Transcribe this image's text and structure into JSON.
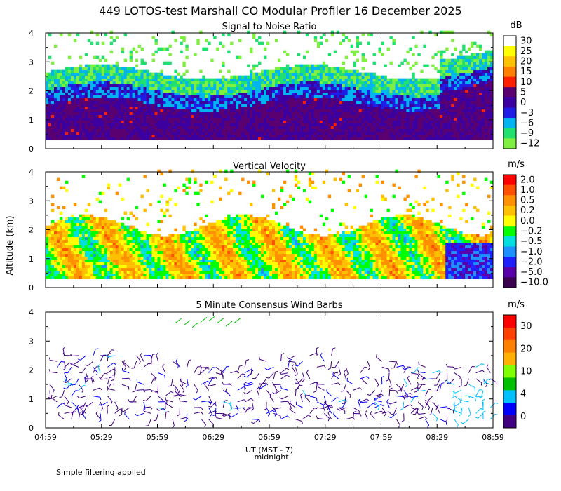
{
  "title": "449 LOTOS-test Marshall CO Modular Profiler 16 December 2025",
  "ylabel": "Altitude (km)",
  "xlabel": "UT (MST - 7)",
  "midnight_label": "midnight",
  "footer": "Simple filtering applied",
  "chart_data": [
    {
      "type": "heatmap",
      "title": "Signal to Noise Ratio",
      "ylabel": "Altitude (km)",
      "y_ticks": [
        "0",
        "1",
        "2",
        "3",
        "4"
      ],
      "ylim": [
        0,
        4
      ],
      "x_ticks": [],
      "colorbar_units": "dB",
      "colorbar_labels": [
        "30",
        "25",
        "20",
        "15",
        "10",
        "5",
        "0",
        "−3",
        "−6",
        "−9",
        "−12"
      ],
      "colors": [
        "#ffffff",
        "#ffff00",
        "#ffc000",
        "#ff8000",
        "#ff2000",
        "#5a0070",
        "#3c00a0",
        "#1e1ee6",
        "#00b4f0",
        "#20e070",
        "#80f040"
      ]
    },
    {
      "type": "heatmap",
      "title": "Vertical Velocity",
      "ylabel": "Altitude (km)",
      "y_ticks": [
        "0",
        "1",
        "2",
        "3",
        "4"
      ],
      "ylim": [
        0,
        4
      ],
      "x_ticks": [],
      "colorbar_units": "m/s",
      "colorbar_labels": [
        "2.0",
        "1.0",
        "0.5",
        "0.2",
        "0.0",
        "−0.2",
        "−0.5",
        "−1.0",
        "−2.0",
        "−5.0",
        "−10.0"
      ],
      "colors": [
        "#ff0000",
        "#ff5000",
        "#ff9000",
        "#ffc000",
        "#ffff00",
        "#00ff00",
        "#00e0e0",
        "#1e90ff",
        "#2020ff",
        "#5a00aa",
        "#3c0050"
      ]
    },
    {
      "type": "scatter",
      "title": "5 Minute Consensus Wind Barbs",
      "ylabel": "Altitude (km)",
      "y_ticks": [
        "0",
        "1",
        "2",
        "3",
        "4"
      ],
      "ylim": [
        0,
        4
      ],
      "x_ticks": [
        "04:59",
        "05:29",
        "05:59",
        "06:29",
        "06:59",
        "07:29",
        "07:59",
        "08:29",
        "08:59"
      ],
      "colorbar_units": "m/s",
      "colorbar_labels": [
        "30",
        "20",
        "10",
        "4",
        "0"
      ],
      "colors": [
        "#ff0000",
        "#ff4000",
        "#ff8000",
        "#ffb000",
        "#80ff00",
        "#00c000",
        "#00c0ff",
        "#0000ff",
        "#400080"
      ]
    }
  ]
}
